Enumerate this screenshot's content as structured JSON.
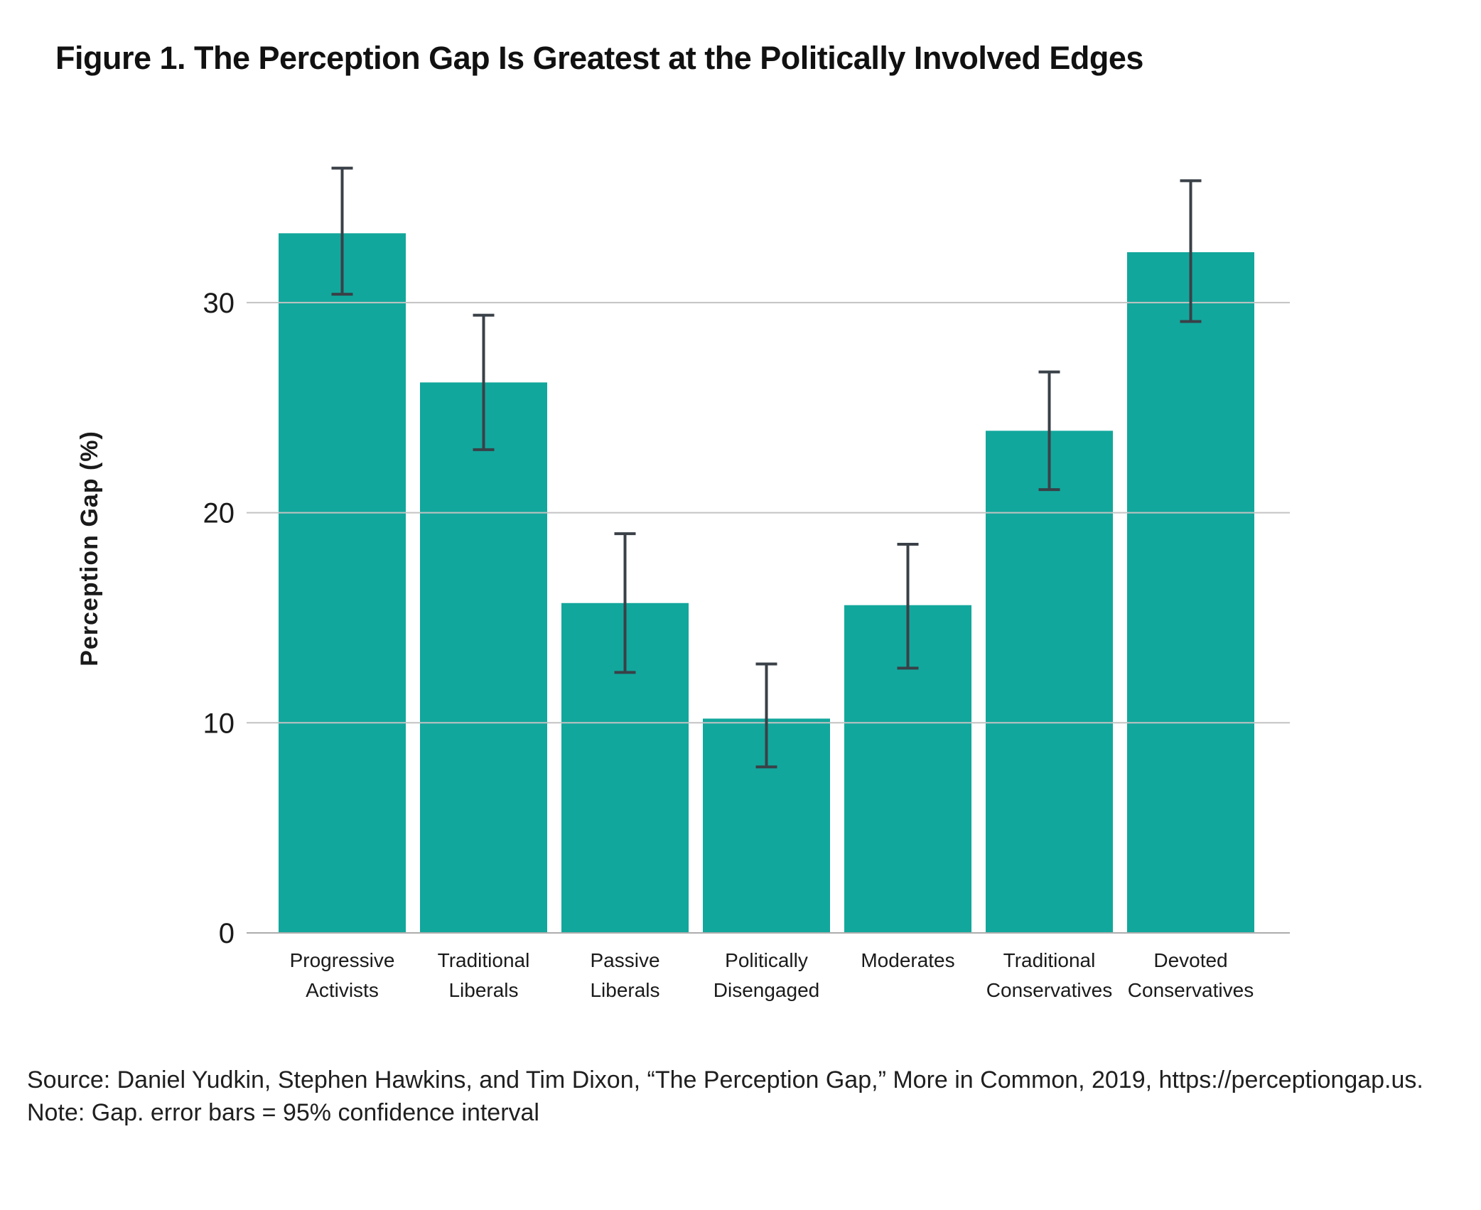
{
  "figure": {
    "title": "Figure 1. The Perception Gap Is Greatest at the Politically Involved Edges",
    "source_line": "Source: Daniel Yudkin, Stephen Hawkins, and Tim Dixon, “The Perception Gap,” More in Common, 2019, https://perceptiongap.us.",
    "note_line": "Note: Gap. error bars = 95% confidence interval"
  },
  "chart_data": {
    "type": "bar",
    "title": "Figure 1. The Perception Gap Is Greatest at the Politically Involved Edges",
    "xlabel": "",
    "ylabel": "Perception Gap (%)",
    "categories": [
      "Progressive Activists",
      "Traditional Liberals",
      "Passive Liberals",
      "Politically Disengaged",
      "Moderates",
      "Traditional Conservatives",
      "Devoted Conservatives"
    ],
    "category_label_lines": [
      [
        "Progressive",
        "Activists"
      ],
      [
        "Traditional",
        "Liberals"
      ],
      [
        "Passive",
        "Liberals"
      ],
      [
        "Politically",
        "Disengaged"
      ],
      [
        "Moderates"
      ],
      [
        "Traditional",
        "Conservatives"
      ],
      [
        "Devoted",
        "Conservatives"
      ]
    ],
    "values": [
      33.3,
      26.2,
      15.7,
      10.2,
      15.6,
      23.9,
      32.4
    ],
    "ci_low": [
      30.4,
      23.0,
      12.4,
      7.9,
      12.6,
      21.1,
      29.1
    ],
    "ci_high": [
      36.4,
      29.4,
      19.0,
      12.8,
      18.5,
      26.7,
      35.8
    ],
    "error_bars": "95% confidence interval",
    "yticks": [
      0,
      10,
      20,
      30
    ],
    "ylim": [
      0,
      37.5
    ],
    "grid": true,
    "gridlines_over_bars": true,
    "legend": false,
    "colors": {
      "bar": "#12A79C",
      "error_bar": "#3A4047",
      "gridline": "#C3C3C3",
      "axis_line": "#ADADAD",
      "text": "#1A1A1A"
    }
  }
}
